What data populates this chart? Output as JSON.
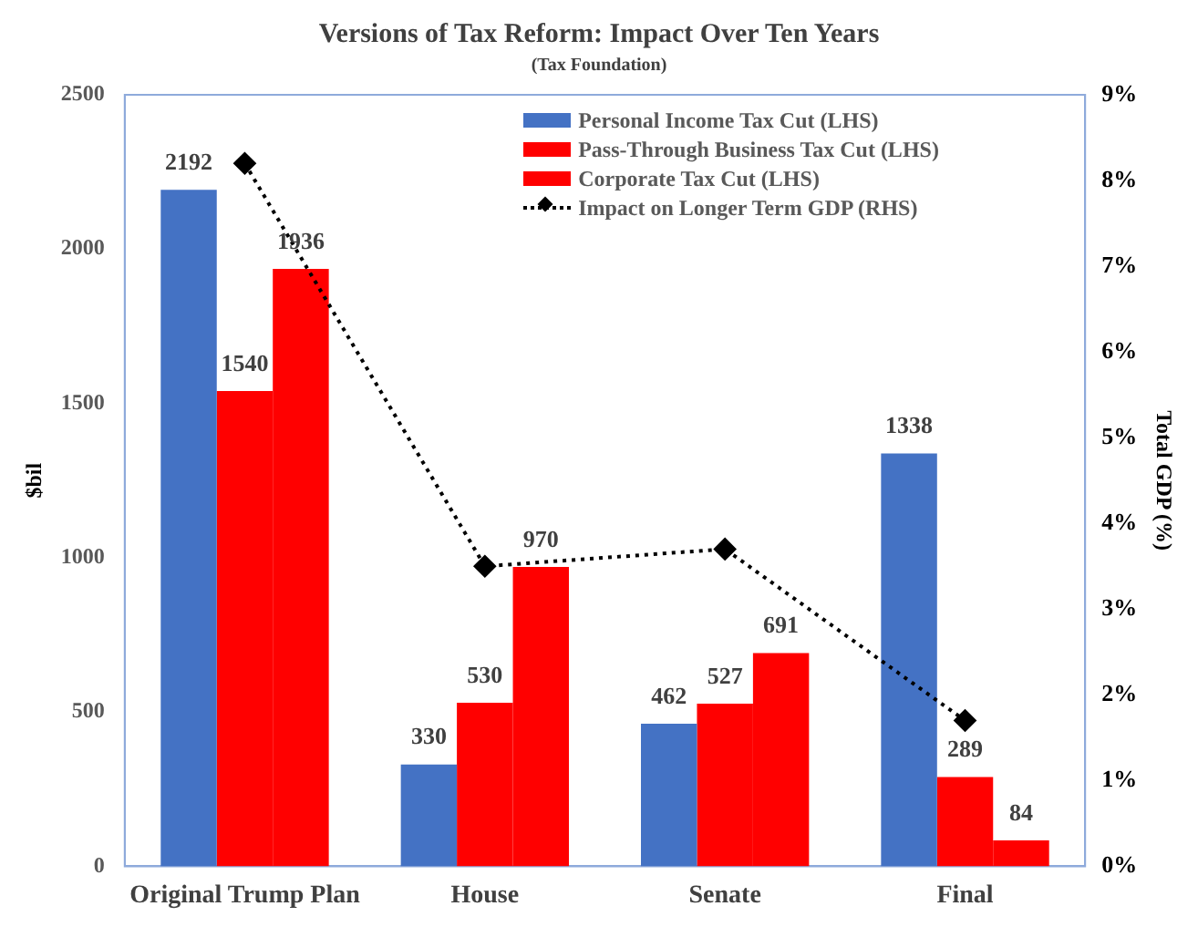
{
  "chart_data": {
    "type": "bar",
    "title": "Versions of Tax Reform: Impact Over Ten Years",
    "subtitle": "(Tax Foundation)",
    "ylabel": "$bil",
    "y2label": "Total GDP (%)",
    "categories": [
      "Original Trump Plan",
      "House",
      "Senate",
      "Final"
    ],
    "series": [
      {
        "name": "Personal Income Tax Cut (LHS)",
        "color": "#4472c4",
        "values": [
          2192,
          330,
          462,
          1338
        ],
        "value_labels": [
          "2192",
          "330",
          "462",
          "1338"
        ]
      },
      {
        "name": "Pass-Through Business Tax Cut (LHS)",
        "color": "#ff0000",
        "values": [
          1540,
          530,
          527,
          289
        ],
        "value_labels": [
          "1540",
          "530",
          "527",
          "289"
        ]
      },
      {
        "name": "Corporate Tax Cut (LHS)",
        "color": "#ff0000",
        "values": [
          1936,
          970,
          691,
          84
        ],
        "value_labels": [
          "1936",
          "970",
          "691",
          "84"
        ]
      },
      {
        "name": "Impact on Longer Term GDP (RHS)",
        "type": "line",
        "axis": "y2",
        "color": "#000000",
        "marker": "diamond",
        "line_style": "dotted",
        "values": [
          8.2,
          3.5,
          3.7,
          1.7
        ]
      }
    ],
    "ylim": [
      0,
      2500
    ],
    "yticks": [
      0,
      500,
      1000,
      1500,
      2000,
      2500
    ],
    "y2lim": [
      0,
      9
    ],
    "y2ticks": [
      {
        "value": 0,
        "label": "0%"
      },
      {
        "value": 1,
        "label": "1%"
      },
      {
        "value": 2,
        "label": "2%"
      },
      {
        "value": 3,
        "label": "3%"
      },
      {
        "value": 4,
        "label": "4%"
      },
      {
        "value": 5,
        "label": "5%"
      },
      {
        "value": 6,
        "label": "6%"
      },
      {
        "value": 7,
        "label": "7%"
      },
      {
        "value": 8,
        "label": "8%"
      },
      {
        "value": 9,
        "label": "9%"
      }
    ],
    "legend": "top right",
    "grid": false
  }
}
